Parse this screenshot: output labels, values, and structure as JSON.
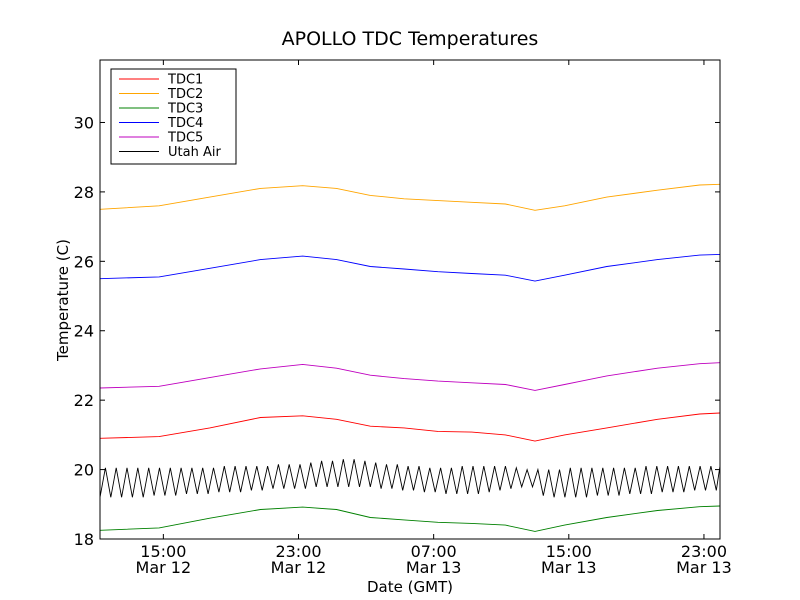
{
  "chart_data": {
    "type": "line",
    "title": "APOLLO TDC Temperatures",
    "xlabel": "Date (GMT)",
    "ylabel": "Temperature (C)",
    "ylim": [
      18,
      31.8
    ],
    "xlim_hours": [
      0,
      36.7
    ],
    "x_unit": "hours since Mar 12 11:15 GMT",
    "y_ticks": [
      18,
      20,
      22,
      24,
      26,
      28,
      30
    ],
    "x_ticks": [
      {
        "hours": 3.75,
        "line1": "15:00",
        "line2": "Mar 12"
      },
      {
        "hours": 11.75,
        "line1": "23:00",
        "line2": "Mar 12"
      },
      {
        "hours": 19.75,
        "line1": "07:00",
        "line2": "Mar 13"
      },
      {
        "hours": 27.75,
        "line1": "15:00",
        "line2": "Mar 13"
      },
      {
        "hours": 35.75,
        "line1": "23:00",
        "line2": "Mar 13"
      }
    ],
    "legend_position": "upper-left",
    "series": [
      {
        "name": "TDC1",
        "color": "#ff0000",
        "points": [
          [
            0,
            20.9
          ],
          [
            3.5,
            20.95
          ],
          [
            6.5,
            21.2
          ],
          [
            9.5,
            21.5
          ],
          [
            12,
            21.55
          ],
          [
            14,
            21.45
          ],
          [
            16,
            21.25
          ],
          [
            18,
            21.2
          ],
          [
            20,
            21.1
          ],
          [
            22,
            21.08
          ],
          [
            24,
            21.0
          ],
          [
            25.75,
            20.82
          ],
          [
            27.5,
            21.0
          ],
          [
            30,
            21.2
          ],
          [
            33,
            21.45
          ],
          [
            35.5,
            21.6
          ],
          [
            36.7,
            21.63
          ]
        ]
      },
      {
        "name": "TDC2",
        "color": "#ffa500",
        "points": [
          [
            0,
            27.5
          ],
          [
            3.5,
            27.6
          ],
          [
            6.5,
            27.85
          ],
          [
            9.5,
            28.1
          ],
          [
            12,
            28.18
          ],
          [
            14,
            28.1
          ],
          [
            16,
            27.9
          ],
          [
            18,
            27.8
          ],
          [
            20,
            27.75
          ],
          [
            22,
            27.7
          ],
          [
            24,
            27.65
          ],
          [
            25.75,
            27.47
          ],
          [
            27.5,
            27.6
          ],
          [
            30,
            27.85
          ],
          [
            33,
            28.05
          ],
          [
            35.5,
            28.2
          ],
          [
            36.7,
            28.22
          ]
        ]
      },
      {
        "name": "TDC3",
        "color": "#008000",
        "points": [
          [
            0,
            18.25
          ],
          [
            3.5,
            18.32
          ],
          [
            6.5,
            18.6
          ],
          [
            9.5,
            18.85
          ],
          [
            12,
            18.92
          ],
          [
            14,
            18.85
          ],
          [
            16,
            18.62
          ],
          [
            18,
            18.55
          ],
          [
            20,
            18.48
          ],
          [
            22,
            18.45
          ],
          [
            24,
            18.4
          ],
          [
            25.75,
            18.22
          ],
          [
            27.5,
            18.4
          ],
          [
            30,
            18.62
          ],
          [
            33,
            18.82
          ],
          [
            35.5,
            18.93
          ],
          [
            36.7,
            18.95
          ]
        ]
      },
      {
        "name": "TDC4",
        "color": "#0000ff",
        "points": [
          [
            0,
            25.5
          ],
          [
            3.5,
            25.55
          ],
          [
            6.5,
            25.8
          ],
          [
            9.5,
            26.05
          ],
          [
            12,
            26.15
          ],
          [
            14,
            26.05
          ],
          [
            16,
            25.85
          ],
          [
            18,
            25.78
          ],
          [
            20,
            25.7
          ],
          [
            22,
            25.65
          ],
          [
            24,
            25.6
          ],
          [
            25.75,
            25.43
          ],
          [
            27.5,
            25.6
          ],
          [
            30,
            25.85
          ],
          [
            33,
            26.05
          ],
          [
            35.5,
            26.18
          ],
          [
            36.7,
            26.2
          ]
        ]
      },
      {
        "name": "TDC5",
        "color": "#bf00bf",
        "points": [
          [
            0,
            22.35
          ],
          [
            3.5,
            22.4
          ],
          [
            6.5,
            22.65
          ],
          [
            9.5,
            22.9
          ],
          [
            12,
            23.03
          ],
          [
            14,
            22.92
          ],
          [
            16,
            22.72
          ],
          [
            18,
            22.62
          ],
          [
            20,
            22.55
          ],
          [
            22,
            22.5
          ],
          [
            24,
            22.45
          ],
          [
            25.75,
            22.28
          ],
          [
            27.5,
            22.45
          ],
          [
            30,
            22.7
          ],
          [
            33,
            22.92
          ],
          [
            35.5,
            23.05
          ],
          [
            36.7,
            23.08
          ]
        ]
      },
      {
        "name": "Utah Air",
        "color": "#000000",
        "points": [
          [
            0,
            19.2
          ],
          [
            0.32,
            20.05
          ],
          [
            0.64,
            19.2
          ],
          [
            0.96,
            20.05
          ],
          [
            1.28,
            19.2
          ],
          [
            1.6,
            20.05
          ],
          [
            1.92,
            19.2
          ],
          [
            2.24,
            20.05
          ],
          [
            2.56,
            19.2
          ],
          [
            2.88,
            20.05
          ],
          [
            3.2,
            19.25
          ],
          [
            3.52,
            20.05
          ],
          [
            3.84,
            19.25
          ],
          [
            4.16,
            20.05
          ],
          [
            4.48,
            19.25
          ],
          [
            4.8,
            20.05
          ],
          [
            5.12,
            19.3
          ],
          [
            5.44,
            20.05
          ],
          [
            5.76,
            19.3
          ],
          [
            6.08,
            20.05
          ],
          [
            6.4,
            19.3
          ],
          [
            6.72,
            20.05
          ],
          [
            7.04,
            19.35
          ],
          [
            7.36,
            20.1
          ],
          [
            7.68,
            19.35
          ],
          [
            8.0,
            20.1
          ],
          [
            8.32,
            19.35
          ],
          [
            8.64,
            20.1
          ],
          [
            8.96,
            19.4
          ],
          [
            9.28,
            20.1
          ],
          [
            9.6,
            19.4
          ],
          [
            9.92,
            20.1
          ],
          [
            10.24,
            19.45
          ],
          [
            10.56,
            20.15
          ],
          [
            10.88,
            19.45
          ],
          [
            11.2,
            20.15
          ],
          [
            11.52,
            19.45
          ],
          [
            11.84,
            20.15
          ],
          [
            12.16,
            19.45
          ],
          [
            12.48,
            20.2
          ],
          [
            12.8,
            19.5
          ],
          [
            13.12,
            20.25
          ],
          [
            13.44,
            19.5
          ],
          [
            13.76,
            20.25
          ],
          [
            14.08,
            19.5
          ],
          [
            14.4,
            20.3
          ],
          [
            14.72,
            19.5
          ],
          [
            15.04,
            20.3
          ],
          [
            15.36,
            19.5
          ],
          [
            15.68,
            20.25
          ],
          [
            16.0,
            19.5
          ],
          [
            16.32,
            20.2
          ],
          [
            16.64,
            19.45
          ],
          [
            16.96,
            20.15
          ],
          [
            17.28,
            19.45
          ],
          [
            17.6,
            20.15
          ],
          [
            17.92,
            19.4
          ],
          [
            18.24,
            20.1
          ],
          [
            18.56,
            19.4
          ],
          [
            18.88,
            20.1
          ],
          [
            19.2,
            19.35
          ],
          [
            19.52,
            20.05
          ],
          [
            19.84,
            19.35
          ],
          [
            20.16,
            20.05
          ],
          [
            20.48,
            19.3
          ],
          [
            20.8,
            20.05
          ],
          [
            21.12,
            19.3
          ],
          [
            21.44,
            20.1
          ],
          [
            21.76,
            19.3
          ],
          [
            22.08,
            20.1
          ],
          [
            22.4,
            19.3
          ],
          [
            22.72,
            20.1
          ],
          [
            23.04,
            19.35
          ],
          [
            23.36,
            20.1
          ],
          [
            23.68,
            19.4
          ],
          [
            24.0,
            20.1
          ],
          [
            24.32,
            19.45
          ],
          [
            24.64,
            20.05
          ],
          [
            24.96,
            19.5
          ],
          [
            25.28,
            20.0
          ],
          [
            25.6,
            19.5
          ],
          [
            25.92,
            20.0
          ],
          [
            26.24,
            19.25
          ],
          [
            26.56,
            20.0
          ],
          [
            26.88,
            19.2
          ],
          [
            27.2,
            20.0
          ],
          [
            27.52,
            19.2
          ],
          [
            27.84,
            20.05
          ],
          [
            28.16,
            19.2
          ],
          [
            28.48,
            20.05
          ],
          [
            28.8,
            19.2
          ],
          [
            29.12,
            20.05
          ],
          [
            29.44,
            19.25
          ],
          [
            29.76,
            20.05
          ],
          [
            30.08,
            19.25
          ],
          [
            30.4,
            20.05
          ],
          [
            30.72,
            19.25
          ],
          [
            31.04,
            20.05
          ],
          [
            31.36,
            19.3
          ],
          [
            31.68,
            20.05
          ],
          [
            32.0,
            19.3
          ],
          [
            32.32,
            20.1
          ],
          [
            32.64,
            19.3
          ],
          [
            32.96,
            20.1
          ],
          [
            33.28,
            19.35
          ],
          [
            33.6,
            20.1
          ],
          [
            33.92,
            19.35
          ],
          [
            34.24,
            20.1
          ],
          [
            34.56,
            19.35
          ],
          [
            34.88,
            20.1
          ],
          [
            35.2,
            19.4
          ],
          [
            35.52,
            20.1
          ],
          [
            35.84,
            19.4
          ],
          [
            36.16,
            20.1
          ],
          [
            36.48,
            19.4
          ],
          [
            36.7,
            20.1
          ]
        ]
      }
    ]
  }
}
